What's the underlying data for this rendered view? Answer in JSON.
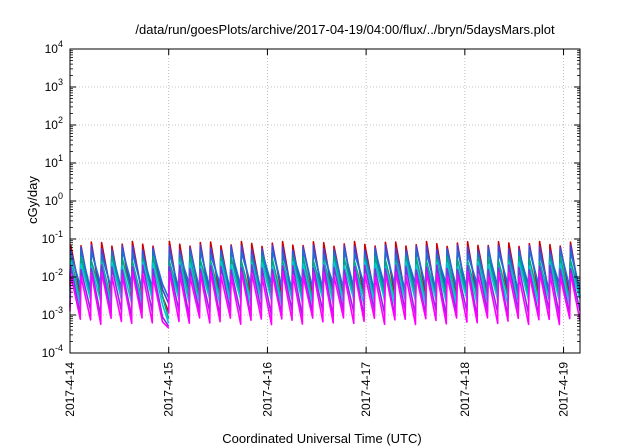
{
  "chart_data": {
    "type": "line",
    "title": "/data/run/goesPlots/archive/2017-04-19/04:00/flux/../bryn/5daysMars.plot",
    "xlabel": "Coordinated Universal Time (UTC)",
    "ylabel": "cGy/day",
    "yscale": "log",
    "ylim": [
      0.0001,
      10000
    ],
    "xlim": [
      "2017-04-14T00:00",
      "2017-04-19T04:00"
    ],
    "grid": true,
    "x_ticks": [
      "2017-4-14",
      "2017-4-15",
      "2017-4-16",
      "2017-4-17",
      "2017-4-18",
      "2017-4-19"
    ],
    "y_ticks": [
      {
        "value": 0.0001,
        "base": "10",
        "exp": "-4"
      },
      {
        "value": 0.001,
        "base": "10",
        "exp": "-3"
      },
      {
        "value": 0.01,
        "base": "10",
        "exp": "-2"
      },
      {
        "value": 0.1,
        "base": "10",
        "exp": "-1"
      },
      {
        "value": 1,
        "base": "10",
        "exp": "0"
      },
      {
        "value": 10,
        "base": "10",
        "exp": "1"
      },
      {
        "value": 100,
        "base": "10",
        "exp": "2"
      },
      {
        "value": 1000,
        "base": "10",
        "exp": "3"
      },
      {
        "value": 10000,
        "base": "10",
        "exp": "4"
      }
    ],
    "sawtooth": {
      "period_hours": 2.5,
      "gap": {
        "start": "2017-04-14T22:30",
        "end": "2017-04-15T00:00"
      }
    },
    "series": [
      {
        "color": "#cc0000",
        "peak": 0.075,
        "trough": 0.003,
        "low_trough": 0.0012
      },
      {
        "color": "#4a3dd8",
        "peak": 0.06,
        "trough": 0.004,
        "low_trough": 0.002
      },
      {
        "color": "#1f6ed4",
        "peak": 0.045,
        "trough": 0.0055,
        "low_trough": 0.0028
      },
      {
        "color": "#00a884",
        "peak": 0.03,
        "trough": 0.003,
        "low_trough": 0.0008
      },
      {
        "color": "#00c8d8",
        "peak": 0.022,
        "trough": 0.0022,
        "low_trough": 0.0006
      },
      {
        "color": "#8a2be2",
        "peak": 0.018,
        "trough": 0.0011,
        "low_trough": 0.0005
      },
      {
        "color": "#ff00ff",
        "peak": 0.012,
        "trough": 0.0007,
        "low_trough": 0.00045
      }
    ]
  }
}
